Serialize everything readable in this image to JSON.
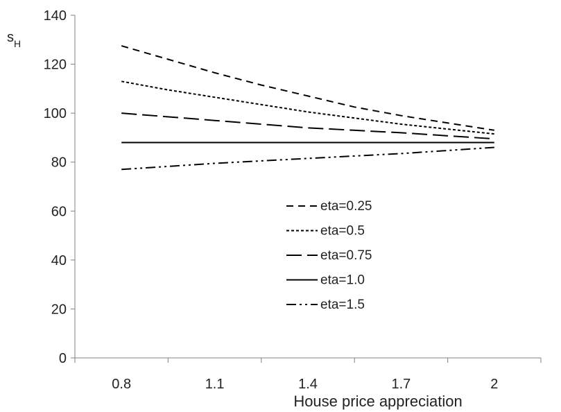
{
  "chart_data": {
    "type": "line",
    "title": "",
    "xlabel": "House price appreciation",
    "ylabel": "s",
    "ylabel_subscript": "H",
    "x": [
      0.8,
      2.0
    ],
    "x_ticks": [
      "0.8",
      "1.1",
      "1.4",
      "1.7",
      "2"
    ],
    "x_tick_values": [
      0.8,
      1.1,
      1.4,
      1.7,
      2.0
    ],
    "xlim": [
      0.65,
      2.15
    ],
    "ylim": [
      0,
      140
    ],
    "y_ticks": [
      "0",
      "20",
      "40",
      "60",
      "80",
      "100",
      "120",
      "140"
    ],
    "y_tick_values": [
      0,
      20,
      40,
      60,
      80,
      100,
      120,
      140
    ],
    "grid": false,
    "legend_position": "center-right",
    "series": [
      {
        "name": "eta=0.25",
        "dash": "long-dash",
        "x": [
          0.8,
          0.95,
          1.1,
          1.25,
          1.4,
          1.55,
          1.7,
          1.85,
          2.0
        ],
        "values": [
          127.5,
          122.0,
          116.5,
          111.5,
          107.0,
          102.5,
          99.0,
          96.0,
          93.0
        ]
      },
      {
        "name": "eta=0.5",
        "dash": "short-dash",
        "x": [
          0.8,
          0.95,
          1.1,
          1.25,
          1.4,
          1.55,
          1.7,
          1.85,
          2.0
        ],
        "values": [
          113.0,
          109.5,
          106.5,
          103.5,
          100.5,
          98.0,
          95.5,
          93.5,
          91.5
        ]
      },
      {
        "name": "eta=0.75",
        "dash": "very-long-dash",
        "x": [
          0.8,
          1.1,
          1.4,
          1.7,
          2.0
        ],
        "values": [
          100.0,
          97.0,
          94.0,
          92.0,
          89.5
        ]
      },
      {
        "name": "eta=1.0",
        "dash": "solid",
        "x": [
          0.8,
          2.0
        ],
        "values": [
          88.0,
          88.0
        ]
      },
      {
        "name": "eta=1.5",
        "dash": "dash-dot-dot",
        "x": [
          0.8,
          1.1,
          1.4,
          1.7,
          2.0
        ],
        "values": [
          77.0,
          79.5,
          81.5,
          83.5,
          86.0
        ]
      }
    ]
  }
}
